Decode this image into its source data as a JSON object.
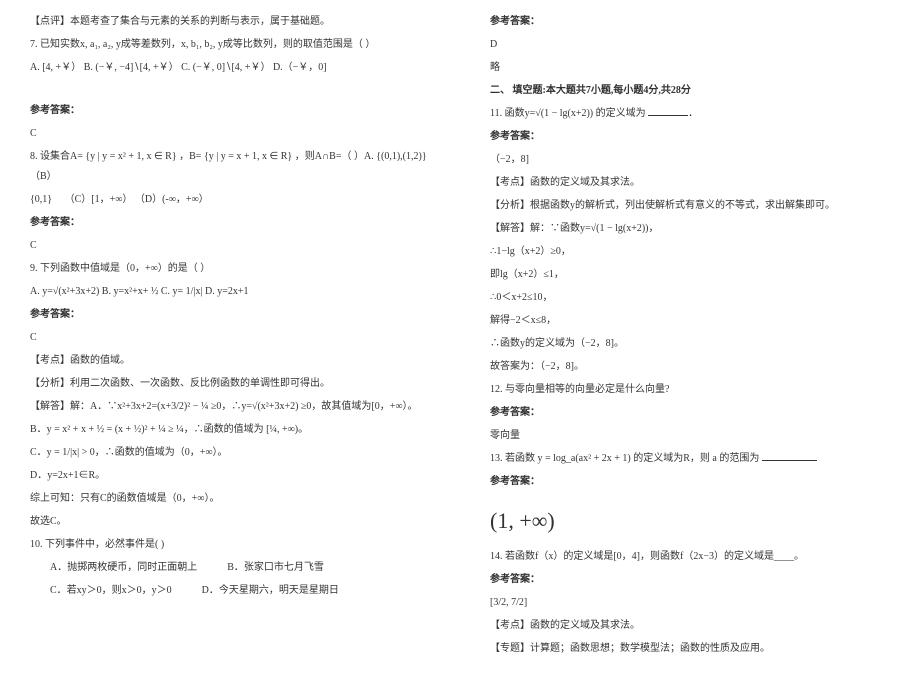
{
  "left": {
    "comment1": "【点评】本题考查了集合与元素的关系的判断与表示，属于基础题。",
    "q7": "7. 已知实数x, a₁, a₂, y成等差数列，x, b₁, b₂, y成等比数列，则的取值范围是（  ）",
    "q7_opts": "A. [4, +￥）  B. (−￥, −4]∖[4, +￥）  C. (−￥, 0]∖[4, +￥）  D.（−￥，0]",
    "ans_label": "参考答案：",
    "a7": "C",
    "q8_prefix": "8. 设集合A=",
    "q8_setA": "{y | y = x² + 1, x ∈ R}",
    "q8_mid": "，B=",
    "q8_setB": "{y | y = x + 1, x ∈ R}",
    "q8_suffix": "，则A∩B=（    ）A.",
    "q8_optA": "{(0,1),(1,2)}",
    "q8_optB_label": "（B）",
    "q8_optB": "{0,1}",
    "q8_optC": "（C）[1，+∞）  （D）(-∞，+∞）",
    "a8": "C",
    "q9": "9. 下列函数中值域是（0，+∞）的是（   ）",
    "q9_opts": "A. y=√(x²+3x+2)    B. y=x²+x+ ½    C. y= 1/|x|    D. y=2x+1",
    "a9": "C",
    "kaodian9": "【考点】函数的值域。",
    "fenxi9": "【分析】利用二次函数、一次函数、反比例函数的单调性即可得出。",
    "jieda9_a": "【解答】解：A．∵x²+3x+2=(x+3/2)² − ¼ ≥0，∴y=√(x²+3x+2) ≥0，故其值域为[0，+∞）。",
    "jieda9_b": "B．y = x² + x + ½ = (x + ½)² + ¼ ≥ ¼，∴函数的值域为 [¼, +∞)。",
    "jieda9_c": "C．y = 1/|x| > 0，∴函数的值域为（0，+∞）。",
    "jieda9_d": "D．y=2x+1∈R。",
    "jieda9_sum": "综上可知：只有C的函数值域是（0，+∞）。",
    "jieda9_final": "故选C。",
    "q10": "10. 下列事件中，必然事件是( )",
    "q10_a": "　　A．抛掷两枚硬币，同时正面朝上　　　B．张家口市七月飞雪",
    "q10_b": "　　C．若xy＞0，则x＞0，y＞0　　　D．今天星期六，明天是星期日"
  },
  "right": {
    "ans_label": "参考答案：",
    "a10": "D",
    "lue": "略",
    "section2": "二、 填空题:本大题共7小题,每小题4分,共28分",
    "q11": "11. 函数y=√(1 − lg(x+2)) 的定义域为",
    "a11": "（−2，8]",
    "kaodian11": "【考点】函数的定义域及其求法。",
    "fenxi11": "【分析】根据函数y的解析式，列出使解析式有意义的不等式，求出解集即可。",
    "jieda11_1": "【解答】解：∵函数y=√(1 − lg(x+2))，",
    "jieda11_2": "∴1−lg（x+2）≥0，",
    "jieda11_3": "即lg（x+2）≤1，",
    "jieda11_4": "∴0＜x+2≤10，",
    "jieda11_5": "解得−2＜x≤8，",
    "jieda11_6": "∴函数y的定义域为（−2，8]。",
    "jieda11_7": "故答案为：（−2，8]。",
    "q12": "12.  与零向量相等的向量必定是什么向量?",
    "a12": "零向量",
    "q13_prefix": "13. 若函数",
    "q13_expr": "y = log_a(ax² + 2x + 1)",
    "q13_suffix": "的定义域为R，则 a 的范围为",
    "a13": "(1, +∞)",
    "q14": "14. 若函数f（x）的定义域是[0，4]，则函数f（2x−3）的定义域是____。",
    "a14": "[3/2, 7/2]",
    "kaodian14": "【考点】函数的定义域及其求法。",
    "zhuanti14": "【专题】计算题；函数思想；数学模型法；函数的性质及应用。"
  }
}
